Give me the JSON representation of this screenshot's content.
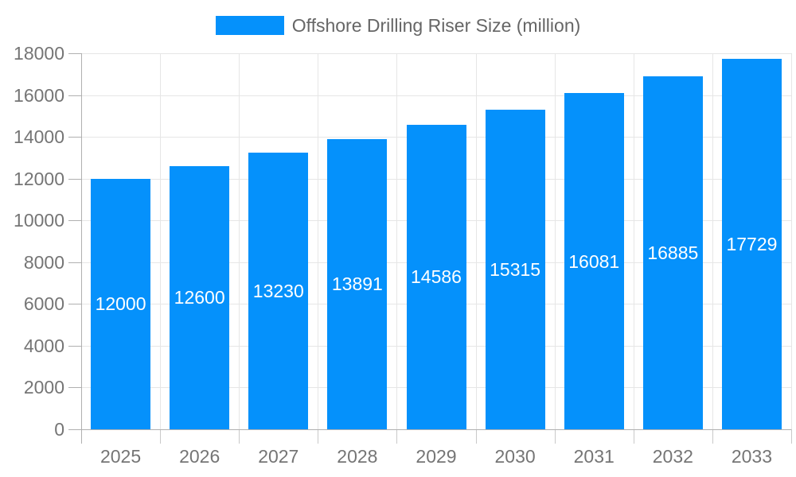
{
  "legend": {
    "label": "Offshore Drilling Riser Size (million)"
  },
  "chart_data": {
    "type": "bar",
    "title": "Offshore Drilling Riser Size (million)",
    "categories": [
      "2025",
      "2026",
      "2027",
      "2028",
      "2029",
      "2030",
      "2031",
      "2032",
      "2033"
    ],
    "values": [
      12000,
      12600,
      13230,
      13891,
      14586,
      15315,
      16081,
      16885,
      17729
    ],
    "xlabel": "",
    "ylabel": "",
    "ylim": [
      0,
      18000
    ],
    "yticks": [
      0,
      2000,
      4000,
      6000,
      8000,
      10000,
      12000,
      14000,
      16000,
      18000
    ],
    "grid": true,
    "legend_position": "top",
    "bar_label_position": "center-inside",
    "colors": {
      "bar": "#0591fb",
      "bar_label": "#ffffff",
      "grid": "#e6e6e6",
      "axis": "#b0b0b0",
      "tick": "#c9c9c9",
      "tick_label": "#757575",
      "legend_text": "#666666"
    }
  }
}
